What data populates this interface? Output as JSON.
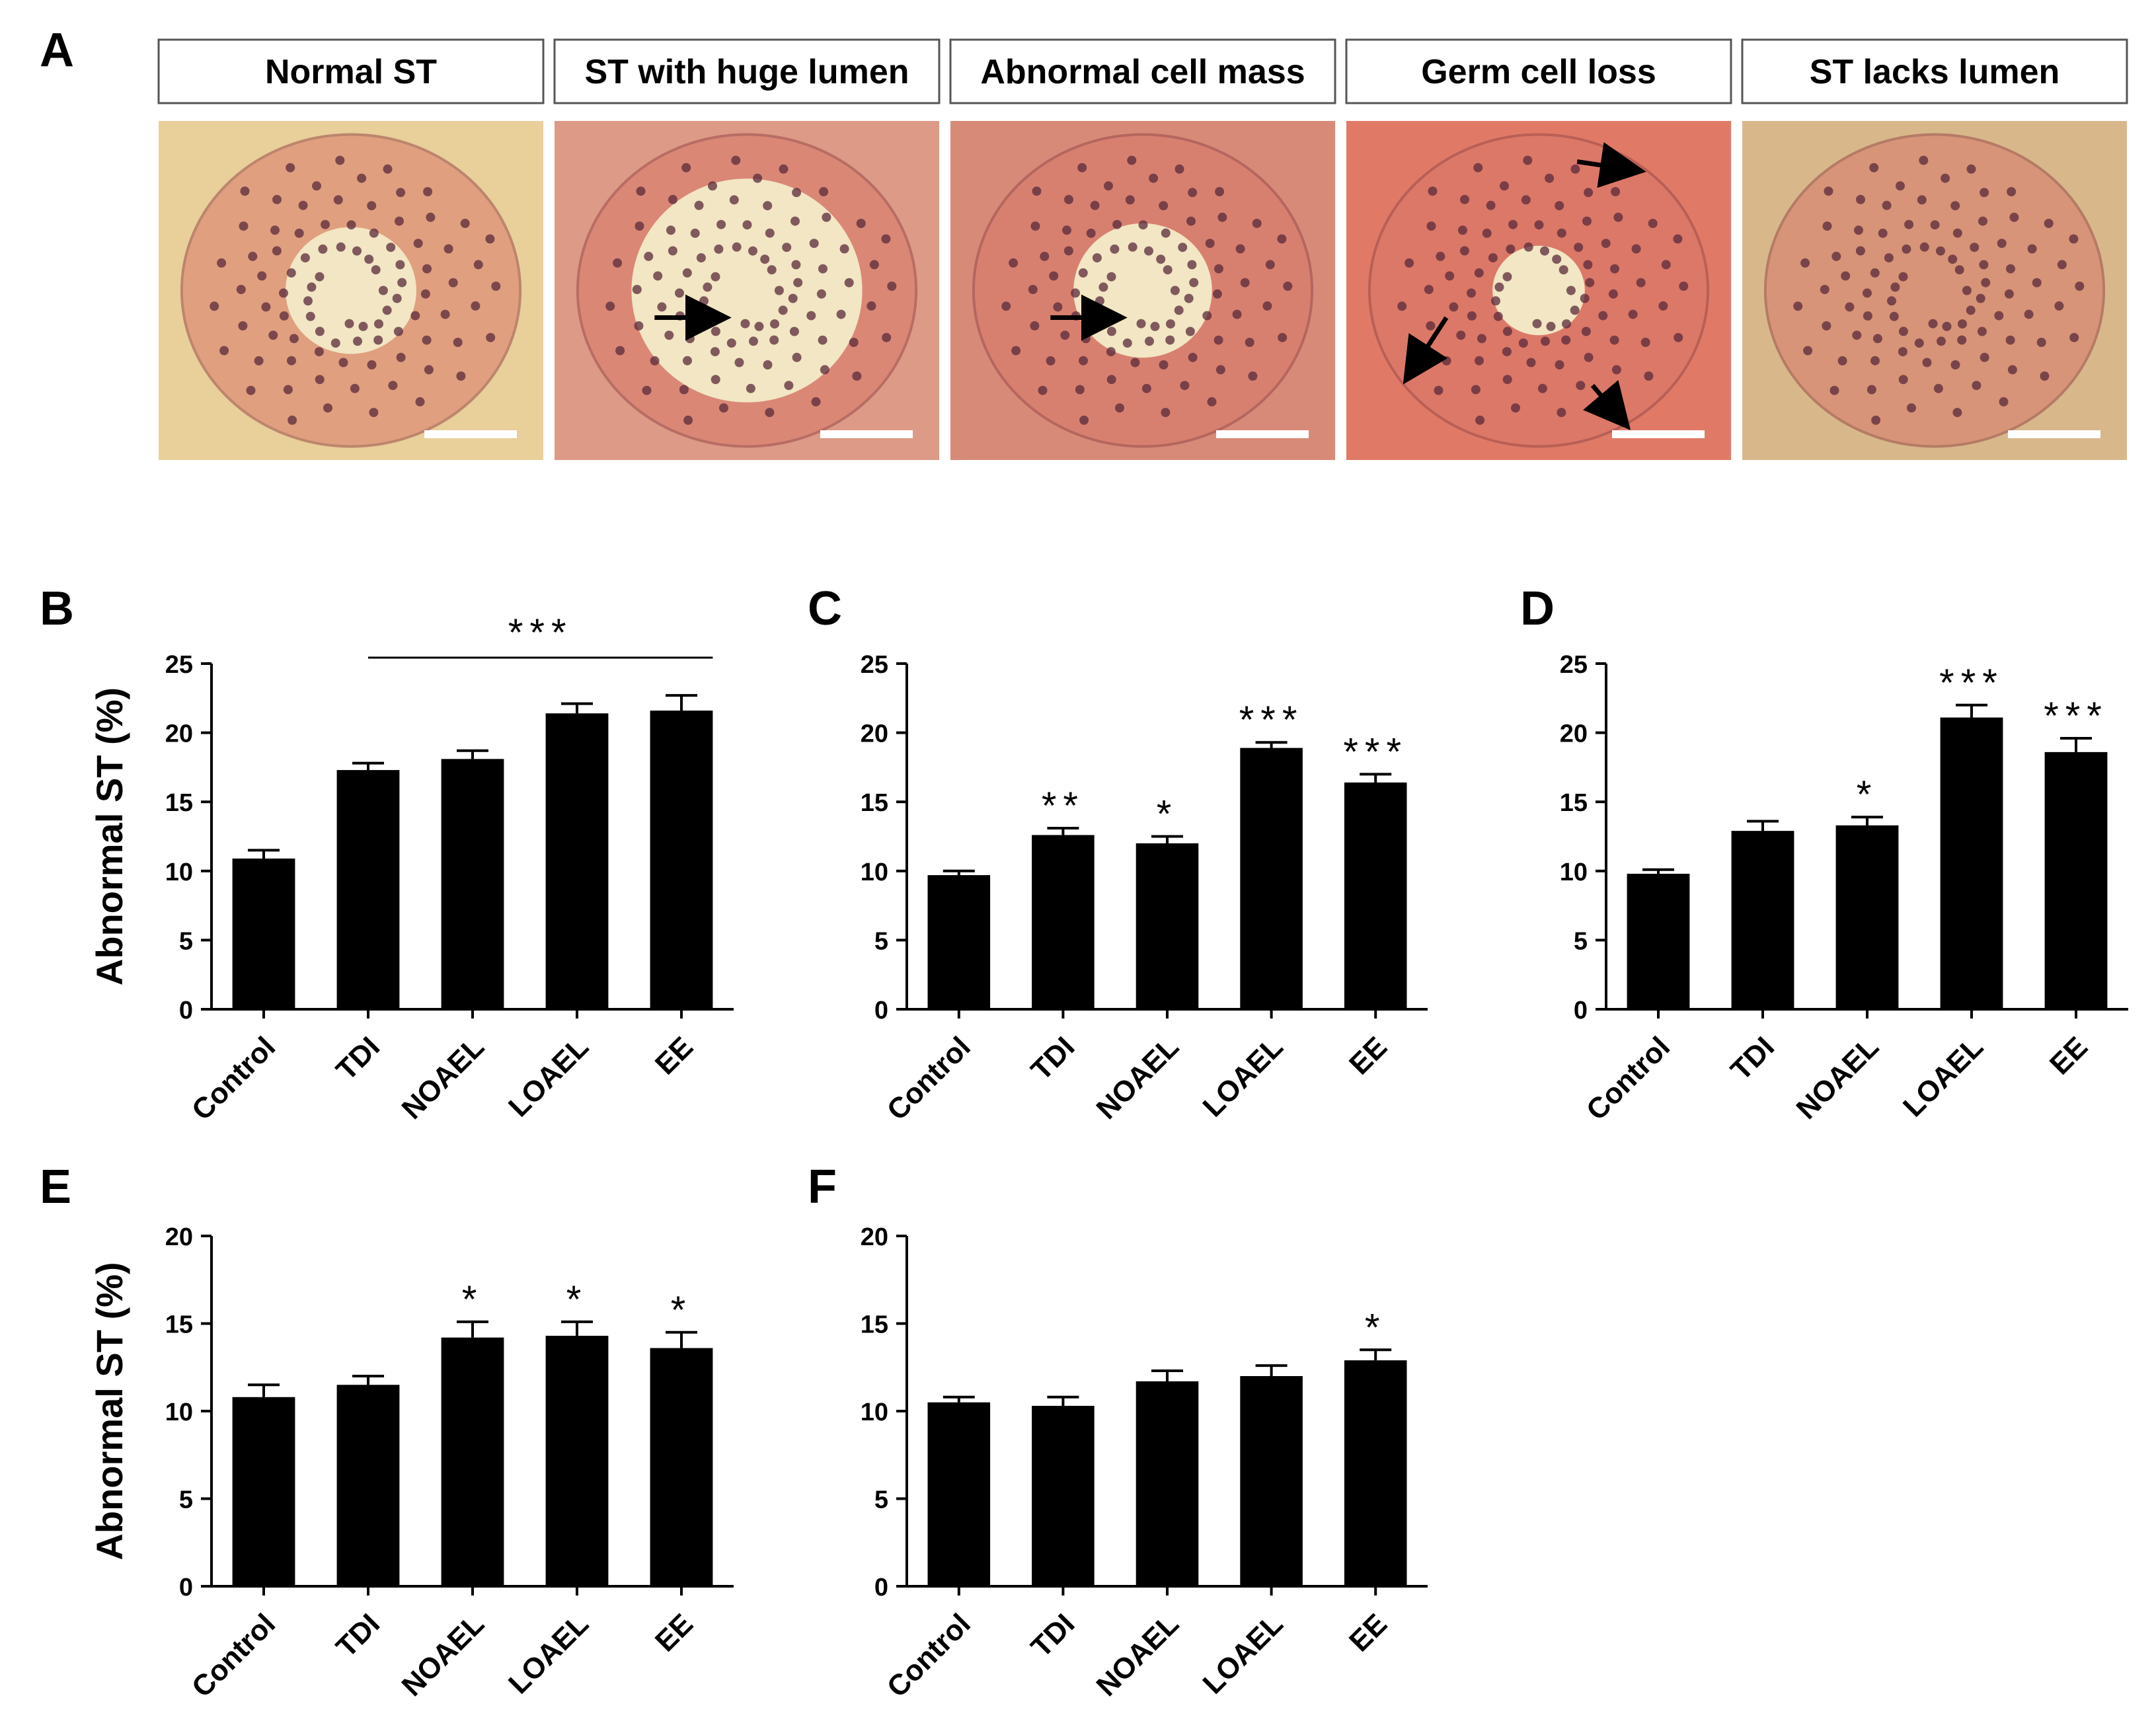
{
  "panel_a": {
    "letter": "A",
    "micrographs": [
      {
        "label": "Normal ST",
        "base_color": "#e9cf9a",
        "arrows": []
      },
      {
        "label": "ST with huge lumen",
        "base_color": "#dd9a86",
        "arrows": [
          1
        ]
      },
      {
        "label": "Abnormal cell mass",
        "base_color": "#d88a78",
        "arrows": [
          1
        ]
      },
      {
        "label": "Germ cell loss",
        "base_color": "#e07a66",
        "arrows": [
          1,
          2,
          3
        ]
      },
      {
        "label": "ST lacks lumen",
        "base_color": "#d8b88a",
        "arrows": []
      }
    ]
  },
  "chart_data": [
    {
      "id": "B",
      "type": "bar",
      "letter": "B",
      "categories": [
        "Control",
        "TDI",
        "NOAEL",
        "LOAEL",
        "EE"
      ],
      "values": [
        10.9,
        17.3,
        18.1,
        21.4,
        21.6
      ],
      "errors": [
        0.6,
        0.5,
        0.6,
        0.7,
        1.1
      ],
      "significance": [
        "",
        "",
        "",
        "",
        ""
      ],
      "bracket": {
        "from": 1,
        "to": 4,
        "label": "***"
      },
      "ylabel": "Abnormal ST (%)",
      "ylim": [
        0,
        25
      ],
      "yticks": [
        0,
        5,
        10,
        15,
        20,
        25
      ]
    },
    {
      "id": "C",
      "type": "bar",
      "letter": "C",
      "categories": [
        "Control",
        "TDI",
        "NOAEL",
        "LOAEL",
        "EE"
      ],
      "values": [
        9.7,
        12.6,
        12.0,
        18.9,
        16.4
      ],
      "errors": [
        0.3,
        0.5,
        0.5,
        0.4,
        0.6
      ],
      "significance": [
        "",
        "**",
        "*",
        "***",
        "***"
      ],
      "ylabel": "",
      "ylim": [
        0,
        25
      ],
      "yticks": [
        0,
        5,
        10,
        15,
        20,
        25
      ]
    },
    {
      "id": "D",
      "type": "bar",
      "letter": "D",
      "categories": [
        "Control",
        "TDI",
        "NOAEL",
        "LOAEL",
        "EE"
      ],
      "values": [
        9.8,
        12.9,
        13.3,
        21.1,
        18.6
      ],
      "errors": [
        0.3,
        0.7,
        0.6,
        0.9,
        1.0
      ],
      "significance": [
        "",
        "",
        "*",
        "***",
        "***"
      ],
      "ylabel": "",
      "ylim": [
        0,
        25
      ],
      "yticks": [
        0,
        5,
        10,
        15,
        20,
        25
      ]
    },
    {
      "id": "E",
      "type": "bar",
      "letter": "E",
      "categories": [
        "Control",
        "TDI",
        "NOAEL",
        "LOAEL",
        "EE"
      ],
      "values": [
        10.8,
        11.5,
        14.2,
        14.3,
        13.6
      ],
      "errors": [
        0.7,
        0.5,
        0.9,
        0.8,
        0.9
      ],
      "significance": [
        "",
        "",
        "*",
        "*",
        "*"
      ],
      "ylabel": "Abnormal ST (%)",
      "ylim": [
        0,
        20
      ],
      "yticks": [
        0,
        5,
        10,
        15,
        20
      ]
    },
    {
      "id": "F",
      "type": "bar",
      "letter": "F",
      "categories": [
        "Control",
        "TDI",
        "NOAEL",
        "LOAEL",
        "EE"
      ],
      "values": [
        10.5,
        10.3,
        11.7,
        12.0,
        12.9
      ],
      "errors": [
        0.3,
        0.5,
        0.6,
        0.6,
        0.6
      ],
      "significance": [
        "",
        "",
        "",
        "",
        "*"
      ],
      "ylabel": "",
      "ylim": [
        0,
        20
      ],
      "yticks": [
        0,
        5,
        10,
        15,
        20
      ]
    }
  ]
}
